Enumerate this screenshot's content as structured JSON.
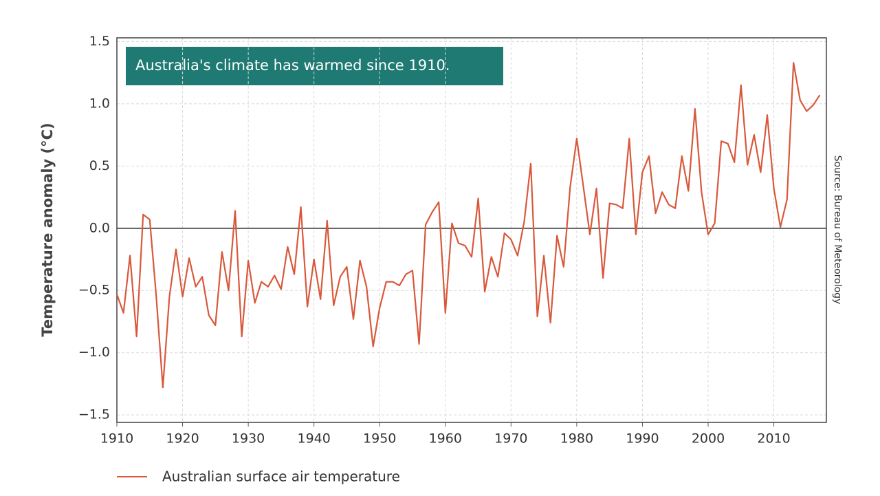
{
  "chart_data": {
    "type": "line",
    "annotation": "Australia's climate has warmed since 1910.",
    "ylabel": "Temperature anomaly (°C)",
    "source": "Source: Bureau of Meteorology",
    "x": [
      1910,
      1911,
      1912,
      1913,
      1914,
      1915,
      1916,
      1917,
      1918,
      1919,
      1920,
      1921,
      1922,
      1923,
      1924,
      1925,
      1926,
      1927,
      1928,
      1929,
      1930,
      1931,
      1932,
      1933,
      1934,
      1935,
      1936,
      1937,
      1938,
      1939,
      1940,
      1941,
      1942,
      1943,
      1944,
      1945,
      1946,
      1947,
      1948,
      1949,
      1950,
      1951,
      1952,
      1953,
      1954,
      1955,
      1956,
      1957,
      1958,
      1959,
      1960,
      1961,
      1962,
      1963,
      1964,
      1965,
      1966,
      1967,
      1968,
      1969,
      1970,
      1971,
      1972,
      1973,
      1974,
      1975,
      1976,
      1977,
      1978,
      1979,
      1980,
      1981,
      1982,
      1983,
      1984,
      1985,
      1986,
      1987,
      1988,
      1989,
      1990,
      1991,
      1992,
      1993,
      1994,
      1995,
      1996,
      1997,
      1998,
      1999,
      2000,
      2001,
      2002,
      2003,
      2004,
      2005,
      2006,
      2007,
      2008,
      2009,
      2010,
      2011,
      2012,
      2013,
      2014,
      2015,
      2016,
      2017
    ],
    "series": [
      {
        "name": "Australian surface air temperature",
        "color": "#d9583b",
        "values": [
          -0.53,
          -0.68,
          -0.22,
          -0.87,
          0.11,
          0.07,
          -0.55,
          -1.28,
          -0.55,
          -0.17,
          -0.55,
          -0.24,
          -0.47,
          -0.39,
          -0.7,
          -0.78,
          -0.19,
          -0.5,
          0.14,
          -0.87,
          -0.26,
          -0.6,
          -0.43,
          -0.47,
          -0.38,
          -0.49,
          -0.15,
          -0.37,
          0.17,
          -0.63,
          -0.25,
          -0.57,
          0.06,
          -0.62,
          -0.39,
          -0.31,
          -0.73,
          -0.26,
          -0.47,
          -0.95,
          -0.64,
          -0.43,
          -0.43,
          -0.46,
          -0.37,
          -0.34,
          -0.93,
          0.03,
          0.13,
          0.21,
          -0.68,
          0.04,
          -0.12,
          -0.14,
          -0.23,
          0.24,
          -0.51,
          -0.23,
          -0.39,
          -0.04,
          -0.09,
          -0.22,
          0.05,
          0.52,
          -0.71,
          -0.22,
          -0.76,
          -0.06,
          -0.31,
          0.33,
          0.72,
          0.34,
          -0.05,
          0.32,
          -0.4,
          0.2,
          0.19,
          0.16,
          0.72,
          -0.05,
          0.45,
          0.58,
          0.12,
          0.29,
          0.19,
          0.16,
          0.58,
          0.3,
          0.96,
          0.29,
          -0.05,
          0.04,
          0.7,
          0.68,
          0.53,
          1.15,
          0.51,
          0.75,
          0.45,
          0.91,
          0.32,
          0.01,
          0.23,
          1.33,
          1.03,
          0.94,
          0.99,
          1.07
        ]
      }
    ],
    "xlim": [
      1910,
      2018
    ],
    "xticks": [
      1910,
      1920,
      1930,
      1940,
      1950,
      1960,
      1970,
      1980,
      1990,
      2000,
      2010
    ],
    "ylim": [
      -1.56,
      1.53
    ],
    "yticks": [
      1.5,
      {
        "value": 1,
        "label": "1.0"
      },
      0.5,
      {
        "value": 0,
        "label": "0.0"
      },
      {
        "value": -0.5,
        "label": "−0.5"
      },
      {
        "value": -1,
        "label": "−1.0"
      },
      {
        "value": -1.5,
        "label": "−1.5"
      }
    ],
    "grid": true
  }
}
